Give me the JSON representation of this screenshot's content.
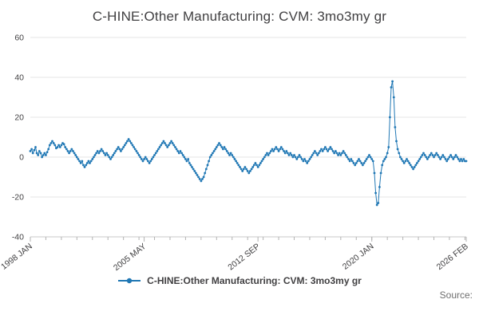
{
  "title": "C-HINE:Other Manufacturing: CVM: 3mo3my gr",
  "legend": {
    "label": "C-HINE:Other Manufacturing: CVM: 3mo3my gr"
  },
  "source_label": "Source:",
  "colors": {
    "line": "#1f77b4",
    "grid": "#e6e6e6",
    "axis": "#c9c9c9",
    "tick": "#b3b3b3",
    "text": "#414042"
  },
  "chart_data": {
    "type": "line",
    "title": "C-HINE:Other Manufacturing: CVM: 3mo3my gr",
    "frequency": "monthly",
    "x_start": "1998 JAN",
    "x_end": "2026 FEB",
    "x_tick_labels": [
      "1998 JAN",
      "2005 MAY",
      "2012 SEP",
      "2020 JAN",
      "2026 FEB"
    ],
    "x_tick_positions": [
      0,
      88,
      176,
      264,
      337
    ],
    "y_ticks": [
      -40,
      -20,
      0,
      20,
      40,
      60
    ],
    "ylim": [
      -40,
      60
    ],
    "grid": true,
    "legend_position": "bottom",
    "legend_entries": [
      "C-HINE:Other Manufacturing: CVM: 3mo3my gr"
    ],
    "values": [
      3,
      4,
      2,
      3.5,
      5,
      2,
      1,
      3,
      2,
      0,
      1,
      2,
      1,
      2.5,
      4,
      6,
      7,
      8,
      7,
      6,
      4.5,
      5,
      6,
      5,
      6,
      7,
      6.5,
      5,
      4,
      3,
      2,
      3,
      4,
      3,
      2,
      1,
      0,
      -1,
      -2,
      -3,
      -2,
      -4,
      -5,
      -4,
      -3,
      -2,
      -3,
      -2,
      -1,
      0,
      1,
      2,
      3,
      2,
      3,
      4,
      3,
      2,
      1,
      2,
      1,
      0,
      -1,
      0,
      1,
      2,
      3,
      4,
      5,
      4,
      3,
      4,
      5,
      6,
      7,
      8,
      9,
      8,
      7,
      6,
      5,
      4,
      3,
      2,
      1,
      0,
      -1,
      -2,
      -1,
      0,
      -1,
      -2,
      -3,
      -2,
      -1,
      0,
      1,
      2,
      3,
      4,
      5,
      6,
      7,
      8,
      7,
      6,
      5,
      6,
      7,
      8,
      7,
      6,
      5,
      4,
      3,
      2,
      3,
      2,
      1,
      0,
      -1,
      -2,
      -1,
      -3,
      -4,
      -5,
      -6,
      -7,
      -8,
      -9,
      -10,
      -11,
      -12,
      -11,
      -10,
      -8,
      -6,
      -4,
      -2,
      0,
      1,
      2,
      3,
      4,
      5,
      6,
      7,
      6,
      5,
      4,
      5,
      4,
      3,
      2,
      1,
      2,
      1,
      0,
      -1,
      -2,
      -3,
      -4,
      -5,
      -6,
      -7,
      -6,
      -5,
      -6,
      -7,
      -8,
      -7,
      -6,
      -5,
      -4,
      -3,
      -4,
      -5,
      -4,
      -3,
      -2,
      -1,
      0,
      1,
      2,
      1,
      2,
      3,
      4,
      3,
      4,
      5,
      4,
      3,
      4,
      5,
      4,
      3,
      2,
      3,
      2,
      1,
      2,
      1,
      0,
      1,
      0,
      -1,
      0,
      1,
      0,
      -1,
      -2,
      -1,
      -2,
      -3,
      -2,
      -1,
      0,
      1,
      2,
      3,
      2,
      1,
      2,
      3,
      4,
      3,
      4,
      5,
      4,
      3,
      4,
      5,
      4,
      3,
      2,
      3,
      2,
      1,
      2,
      1,
      2,
      3,
      2,
      1,
      0,
      -1,
      -2,
      -1,
      -2,
      -3,
      -4,
      -3,
      -2,
      -1,
      -2,
      -3,
      -4,
      -3,
      -2,
      -1,
      0,
      1,
      0,
      -1,
      -2,
      -8,
      -18,
      -24,
      -23,
      -15,
      -8,
      -4,
      -2,
      -1,
      0,
      2,
      5,
      20,
      35,
      38,
      30,
      15,
      8,
      4,
      2,
      0,
      -1,
      -2,
      -3,
      -2,
      -1,
      -2,
      -3,
      -4,
      -5,
      -6,
      -5,
      -4,
      -3,
      -2,
      -1,
      0,
      1,
      2,
      1,
      0,
      -1,
      0,
      1,
      2,
      1,
      0,
      1,
      2,
      1,
      0,
      -1,
      0,
      1,
      0,
      -1,
      -2,
      -1,
      0,
      1,
      0,
      -1,
      0,
      1,
      0,
      -1,
      -2,
      -1,
      -2,
      -1,
      -2,
      -2
    ]
  }
}
